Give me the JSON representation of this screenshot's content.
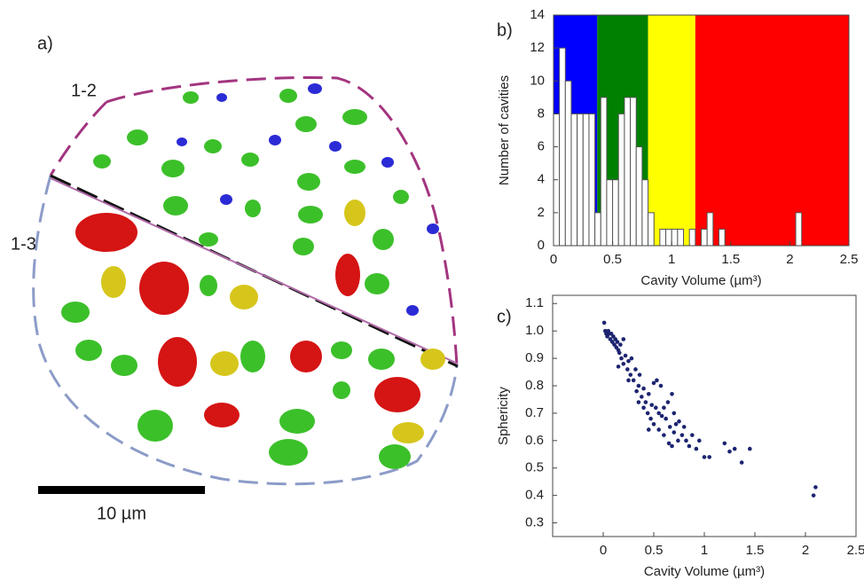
{
  "image_panel": {
    "panel_label": "a)",
    "region_top": "1-2",
    "region_left": "1-3",
    "scale_bar": "10 µm"
  },
  "chart_data": [
    {
      "type": "histogram",
      "panel_label": "b)",
      "x_label": "Cavity Volume (µm³)",
      "y_label": "Number of cavities",
      "bins": [
        0,
        0.05,
        0.1,
        0.15,
        0.2,
        0.25,
        0.3,
        0.35,
        0.4,
        0.45,
        0.5,
        0.55,
        0.6,
        0.65,
        0.7,
        0.75,
        0.8,
        0.85,
        0.9,
        0.95,
        1,
        1.05,
        1.1,
        1.15,
        1.2,
        1.25,
        1.3,
        1.35,
        1.4,
        1.45,
        1.5,
        1.55,
        1.6,
        1.65,
        1.7,
        1.75,
        1.8,
        1.85,
        1.9,
        1.95,
        2,
        2.05,
        2.1
      ],
      "values": [
        8,
        12,
        10,
        8,
        8,
        8,
        8,
        2,
        9,
        4,
        4,
        8,
        9,
        9,
        6,
        4,
        2,
        0,
        1,
        1,
        1,
        1,
        0,
        1,
        0,
        1,
        2,
        0,
        1,
        0,
        0,
        0,
        0,
        0,
        0,
        0,
        0,
        0,
        0,
        0,
        0,
        2
      ],
      "color": "#ffffff",
      "bands": [
        {
          "from": 0,
          "to": 0.37,
          "color": "#0000ff"
        },
        {
          "from": 0.37,
          "to": 0.8,
          "color": "#008000"
        },
        {
          "from": 0.8,
          "to": 1.2,
          "color": "#ffff00"
        },
        {
          "from": 1.2,
          "to": 2.5,
          "color": "#ff0000"
        }
      ],
      "xlim": [
        0,
        2.5
      ],
      "xticks": [
        0,
        0.5,
        1,
        1.5,
        2,
        2.5
      ],
      "ylim": [
        0,
        14
      ],
      "yticks": [
        0,
        2,
        4,
        6,
        8,
        10,
        12,
        14
      ]
    },
    {
      "type": "scatter",
      "panel_label": "c)",
      "x_label": "Cavity Volume (µm³)",
      "y_label": "Sphericity",
      "color": "#1c2470",
      "x": [
        0.01,
        0.02,
        0.03,
        0.04,
        0.05,
        0.06,
        0.07,
        0.08,
        0.09,
        0.1,
        0.11,
        0.12,
        0.13,
        0.14,
        0.15,
        0.15,
        0.16,
        0.17,
        0.18,
        0.2,
        0.2,
        0.22,
        0.24,
        0.25,
        0.25,
        0.27,
        0.28,
        0.3,
        0.32,
        0.33,
        0.35,
        0.35,
        0.36,
        0.38,
        0.4,
        0.4,
        0.42,
        0.44,
        0.45,
        0.45,
        0.47,
        0.48,
        0.5,
        0.5,
        0.52,
        0.53,
        0.55,
        0.55,
        0.57,
        0.58,
        0.6,
        0.6,
        0.62,
        0.64,
        0.65,
        0.66,
        0.68,
        0.68,
        0.7,
        0.7,
        0.72,
        0.74,
        0.75,
        0.78,
        0.8,
        0.82,
        0.85,
        0.88,
        0.92,
        0.95,
        1.0,
        1.05,
        1.2,
        1.25,
        1.3,
        1.37,
        1.45,
        2.08,
        2.1
      ],
      "values": [
        1.03,
        1.0,
        0.99,
        0.98,
        1.0,
        0.99,
        0.97,
        0.99,
        0.96,
        0.98,
        0.95,
        0.97,
        0.94,
        0.96,
        0.93,
        0.87,
        0.92,
        0.95,
        0.9,
        0.97,
        0.88,
        0.91,
        0.86,
        0.89,
        0.82,
        0.84,
        0.9,
        0.82,
        0.86,
        0.78,
        0.8,
        0.74,
        0.84,
        0.76,
        0.79,
        0.72,
        0.74,
        0.7,
        0.77,
        0.64,
        0.68,
        0.73,
        0.81,
        0.66,
        0.72,
        0.82,
        0.7,
        0.64,
        0.8,
        0.69,
        0.72,
        0.62,
        0.68,
        0.74,
        0.59,
        0.65,
        0.77,
        0.58,
        0.7,
        0.63,
        0.66,
        0.6,
        0.67,
        0.62,
        0.65,
        0.6,
        0.58,
        0.62,
        0.57,
        0.6,
        0.54,
        0.54,
        0.59,
        0.56,
        0.57,
        0.52,
        0.57,
        0.4,
        0.43
      ],
      "xlim": [
        -0.5,
        2.5
      ],
      "xticks": [
        0,
        0.5,
        1,
        1.5,
        2,
        2.5
      ],
      "ylim": [
        0.25,
        1.13
      ],
      "yticks": [
        0.3,
        0.4,
        0.5,
        0.6,
        0.7,
        0.8,
        0.9,
        {
          "value": 1,
          "label": "1.0"
        },
        1.1
      ]
    }
  ]
}
